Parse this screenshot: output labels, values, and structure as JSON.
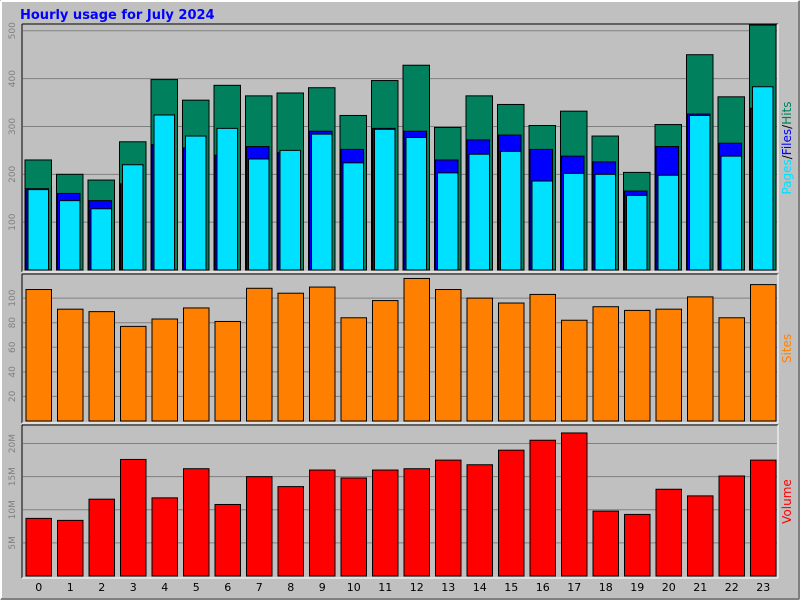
{
  "colors": {
    "hits": "#00805c",
    "files": "#0000ff",
    "pages": "#00e0ff",
    "sites": "#ff8000",
    "volume": "#ff0000",
    "title": "#0000ff"
  },
  "chart_data": {
    "type": "bar",
    "title": "Hourly usage for July 2024",
    "categories": [
      "0",
      "1",
      "2",
      "3",
      "4",
      "5",
      "6",
      "7",
      "8",
      "9",
      "10",
      "11",
      "12",
      "13",
      "14",
      "15",
      "16",
      "17",
      "18",
      "19",
      "20",
      "21",
      "22",
      "23"
    ],
    "panels": [
      {
        "name": "hits_files_pages",
        "ylabel_parts": [
          "Pages",
          "/",
          "Files",
          "/",
          "Hits"
        ],
        "ylim": [
          0,
          510
        ],
        "ticks": [
          100,
          200,
          300,
          400,
          500
        ],
        "series": [
          {
            "name": "Hits",
            "values": [
              230,
              200,
              188,
              268,
              398,
              355,
              386,
              364,
              370,
              381,
              323,
              396,
              428,
              298,
              364,
              346,
              302,
              332,
              280,
              204,
              304,
              450,
              362,
              512
            ]
          },
          {
            "name": "Files",
            "values": [
              170,
              160,
              145,
              180,
              262,
              255,
              240,
              258,
              245,
              290,
              252,
              296,
              290,
              230,
              272,
              282,
              252,
              238,
              226,
              165,
              258,
              326,
              265,
              338
            ]
          },
          {
            "name": "Pages",
            "values": [
              168,
              145,
              128,
              220,
              324,
              280,
              296,
              232,
              250,
              284,
              224,
              294,
              277,
              203,
              242,
              248,
              186,
              202,
              200,
              156,
              198,
              323,
              238,
              383
            ]
          }
        ]
      },
      {
        "name": "sites",
        "ylabel_parts": [
          "Sites"
        ],
        "ylim": [
          0,
          118
        ],
        "ticks": [
          20,
          40,
          60,
          80,
          100
        ],
        "series": [
          {
            "name": "Sites",
            "values": [
              107,
              91,
              89,
              77,
              83,
              92,
              81,
              108,
              104,
              109,
              84,
              98,
              116,
              107,
              100,
              96,
              103,
              82,
              93,
              90,
              91,
              101,
              84,
              111
            ]
          }
        ]
      },
      {
        "name": "volume",
        "ylabel_parts": [
          "Volume"
        ],
        "ylim": [
          0,
          22.5
        ],
        "ticks": [
          5,
          10,
          15,
          20
        ],
        "tick_labels": [
          "5M",
          "10M",
          "15M",
          "20M"
        ],
        "series": [
          {
            "name": "Volume",
            "values": [
              8.7,
              8.4,
              11.6,
              17.6,
              11.8,
              16.2,
              10.8,
              15.0,
              13.5,
              16.0,
              14.8,
              16.0,
              16.2,
              17.5,
              16.8,
              19.0,
              20.5,
              21.6,
              9.8,
              9.3,
              13.1,
              12.1,
              15.1,
              17.5
            ]
          }
        ]
      }
    ]
  }
}
